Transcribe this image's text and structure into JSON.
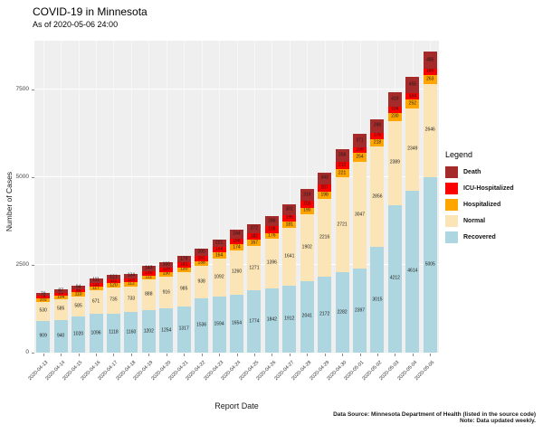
{
  "title": "COVID-19 in Minnesota",
  "subtitle": "As of 2020-05-06 24:00",
  "axes": {
    "ylabel": "Number of Cases",
    "xlabel": "Report Date",
    "yticks": [
      "0",
      "2500",
      "5000",
      "7500"
    ]
  },
  "legend": {
    "title": "Legend",
    "entries": [
      {
        "label": "Death",
        "color": "#a52a2a"
      },
      {
        "label": "ICU-Hospitalized",
        "color": "#fe0000"
      },
      {
        "label": "Hospitalized",
        "color": "#ffa500"
      },
      {
        "label": "Normal",
        "color": "#fbe5b6"
      },
      {
        "label": "Recovered",
        "color": "#aed6e0"
      }
    ]
  },
  "footer": {
    "line1": "Data Source: Minnesota Department of Health (listed in the source code)",
    "line2": "Note: Data updated weekly."
  },
  "chart_data": {
    "type": "bar",
    "stacked": true,
    "title": "COVID-19 in Minnesota",
    "xlabel": "Report Date",
    "ylabel": "Number of Cases",
    "ylim": [
      0,
      9000
    ],
    "yticks": [
      0,
      2500,
      5000,
      7500
    ],
    "grid": true,
    "legend_position": "right",
    "categories": [
      "2020-04-13",
      "2020-04-14",
      "2020-04-15",
      "2020-04-16",
      "2020-04-17",
      "2020-04-18",
      "2020-04-19",
      "2020-04-20",
      "2020-04-21",
      "2020-04-22",
      "2020-04-23",
      "2020-04-24",
      "2020-04-25",
      "2020-04-26",
      "2020-04-27",
      "2020-04-28",
      "2020-04-29",
      "2020-04-30",
      "2020-05-01",
      "2020-05-02",
      "2020-05-03",
      "2020-05-04",
      "2020-05-05"
    ],
    "series": [
      {
        "name": "Recovered",
        "color": "#aed6e0",
        "values": [
          909,
          940,
          1020,
          1096,
          1118,
          1160,
          1202,
          1254,
          1317,
          1536,
          1594,
          1654,
          1774,
          1842,
          1912,
          2041,
          2172,
          2282,
          2397,
          3015,
          4212,
          4614,
          5005
        ]
      },
      {
        "name": "Normal",
        "color": "#fbe5b6",
        "values": [
          530,
          585,
          585,
          671,
          735,
          733,
          888,
          916,
          985,
          938,
          1092,
          1260,
          1271,
          1396,
          1641,
          1902,
          2216,
          2721,
          3047,
          2856,
          2389,
          2349,
          2646
        ]
      },
      {
        "name": "Hospitalized",
        "color": "#ffa500",
        "values": [
          102,
          104,
          110,
          117,
          120,
          112,
          111,
          130,
          130,
          138,
          164,
          174,
          167,
          176,
          181,
          190,
          198,
          221,
          254,
          218,
          230,
          252,
          263
        ]
      },
      {
        "name": "ICU-Hospitalized",
        "color": "#fe0000",
        "values": [
          75,
          84,
          98,
          111,
          111,
          115,
          130,
          125,
          141,
          151,
          154,
          168,
          182,
          188,
          196,
          203,
          207,
          212,
          159,
          176,
          184,
          184,
          180
        ]
      },
      {
        "name": "Death",
        "color": "#a52a2a",
        "values": [
          79,
          87,
          94,
          111,
          121,
          134,
          143,
          160,
          179,
          200,
          221,
          244,
          272,
          286,
          301,
          319,
          343,
          358,
          371,
          398,
          419,
          455,
          485
        ]
      }
    ]
  }
}
